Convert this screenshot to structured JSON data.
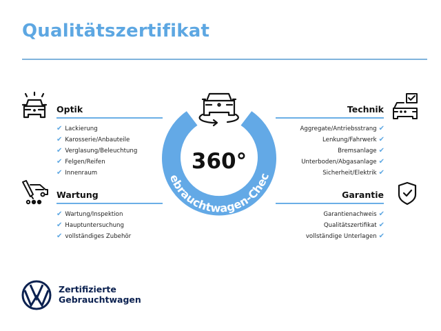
{
  "title": "Qualitätszertifikat",
  "colors": {
    "accent": "#5da7e2",
    "brand_navy": "#0b2150"
  },
  "center": {
    "degrees": "360°",
    "ring_text": "Gebrauchtwagen-Check",
    "icon": "car-rotate-icon"
  },
  "sections": {
    "optik": {
      "heading": "Optik",
      "icon": "car-light-icon",
      "items": [
        "Lackierung",
        "Karosserie/Anbauteile",
        "Verglasung/Beleuchtung",
        "Felgen/Reifen",
        "Innenraum"
      ]
    },
    "wartung": {
      "heading": "Wartung",
      "icon": "service-tools-icon",
      "items": [
        "Wartung/Inspektion",
        "Hauptuntersuchung",
        "vollständiges Zubehör"
      ]
    },
    "technik": {
      "heading": "Technik",
      "icon": "car-checklist-icon",
      "items": [
        "Aggregate/Antriebsstrang",
        "Lenkung/Fahrwerk",
        "Bremsanlage",
        "Unterboden/Abgasanlage",
        "Sicherheit/Elektrik"
      ]
    },
    "garantie": {
      "heading": "Garantie",
      "icon": "shield-check-icon",
      "items": [
        "Garantienachweis",
        "Qualitätszertifikat",
        "vollständige Unterlagen"
      ]
    }
  },
  "check_glyph": "✔",
  "footer": {
    "line1": "Zertifizierte",
    "line2": "Gebrauchtwagen",
    "logo": "vw-logo"
  }
}
